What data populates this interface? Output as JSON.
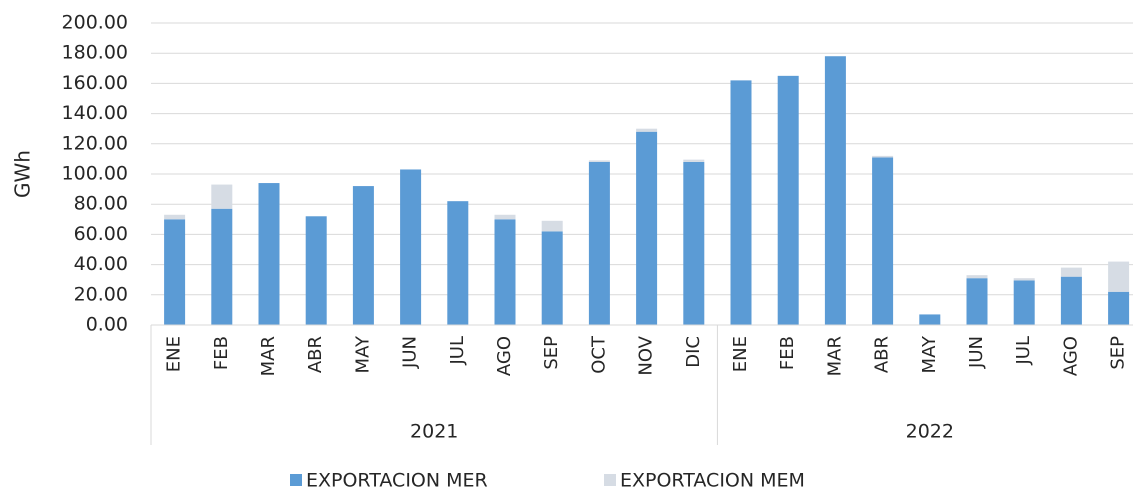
{
  "chart_data": {
    "type": "stacked-bar",
    "y_label": "GWh",
    "groups": [
      {
        "label": "2021",
        "categories": [
          "ENE",
          "FEB",
          "MAR",
          "ABR",
          "MAY",
          "JUN",
          "JUL",
          "AGO",
          "SEP",
          "OCT",
          "NOV",
          "DIC"
        ]
      },
      {
        "label": "2022",
        "categories": [
          "ENE",
          "FEB",
          "MAR",
          "ABR",
          "MAY",
          "JUN",
          "JUL",
          "AGO",
          "SEP"
        ]
      }
    ],
    "series": [
      {
        "name": "EXPORTACION MER",
        "color": "#5b9bd5",
        "values": [
          70,
          77,
          94,
          72,
          92,
          103,
          82,
          70,
          62,
          108,
          128,
          108,
          162,
          165,
          178,
          111,
          7,
          31,
          29.5,
          32,
          22
        ]
      },
      {
        "name": "EXPORTACION MEM",
        "color": "#d6dce4",
        "values": [
          3,
          16,
          0,
          0,
          0,
          0,
          0,
          3,
          7,
          1,
          2,
          1.5,
          0,
          0,
          0,
          1,
          0,
          2,
          1.5,
          6,
          20
        ]
      }
    ],
    "ylim": [
      0,
      200
    ],
    "yticks": [
      {
        "value": 0,
        "label": "0.00"
      },
      {
        "value": 20,
        "label": "20.00"
      },
      {
        "value": 40,
        "label": "40.00"
      },
      {
        "value": 60,
        "label": "60.00"
      },
      {
        "value": 80,
        "label": "80.00"
      },
      {
        "value": 100,
        "label": "100.00"
      },
      {
        "value": 120,
        "label": "120.00"
      },
      {
        "value": 140,
        "label": "140.00"
      },
      {
        "value": 160,
        "label": "160.00"
      },
      {
        "value": 180,
        "label": "180.00"
      },
      {
        "value": 200,
        "label": "200.00"
      }
    ],
    "grid": true,
    "legend": "bottom"
  }
}
